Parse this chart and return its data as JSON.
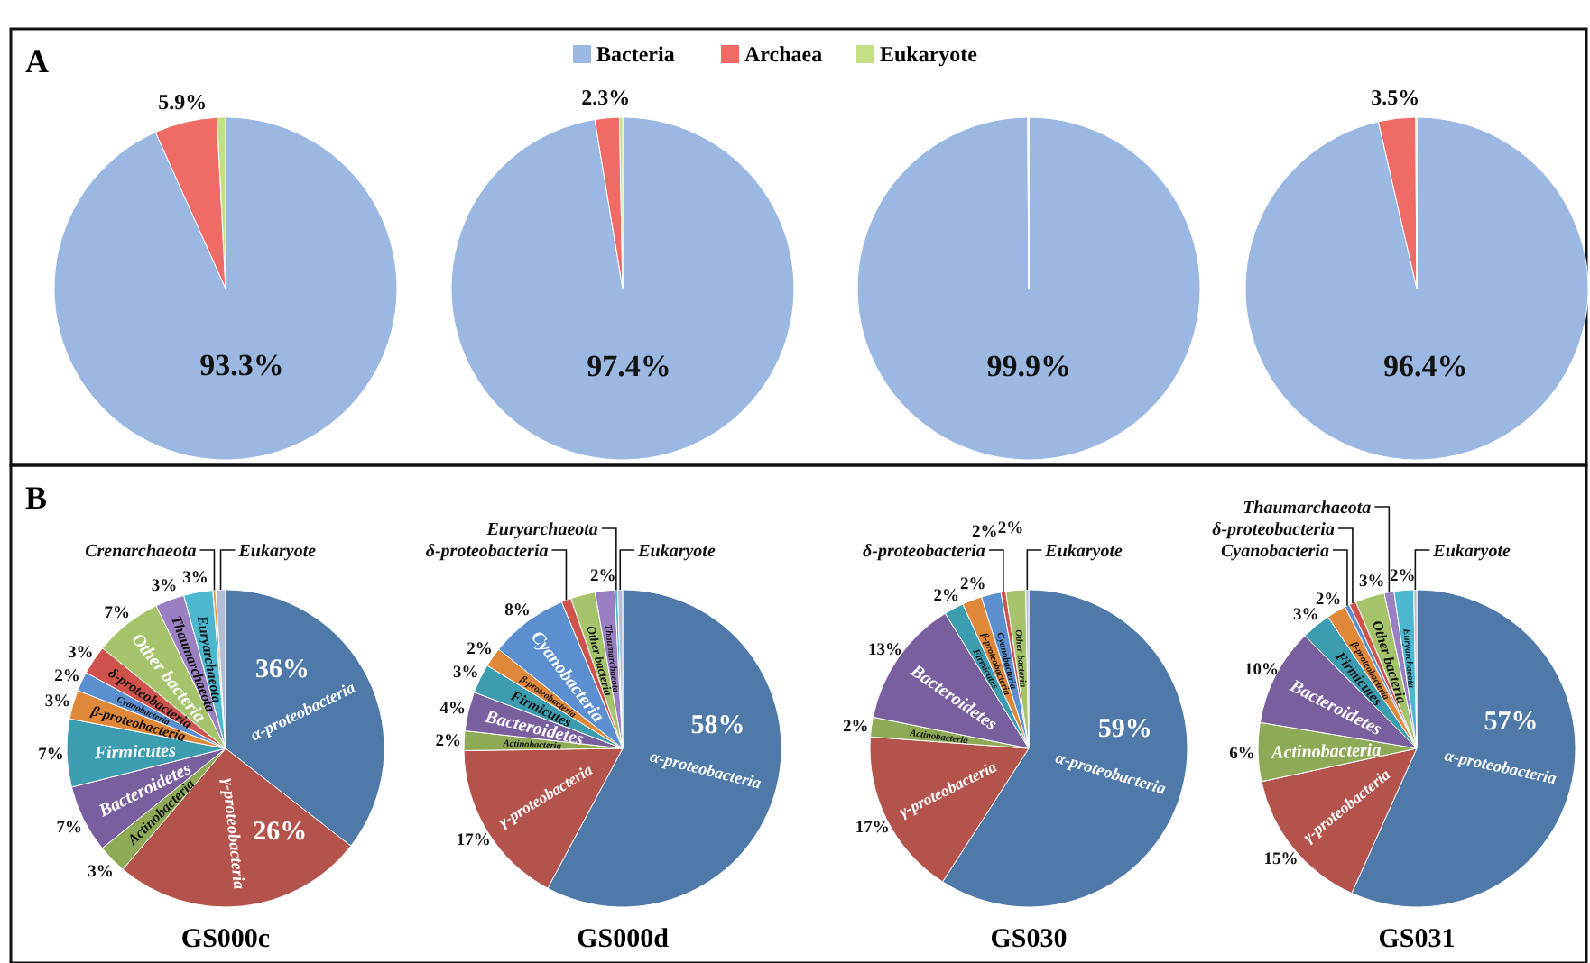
{
  "chart_data": [
    {
      "type": "pie",
      "annotations": [
        "A"
      ],
      "legend": "top",
      "categories": [
        "Bacteria",
        "Archaea",
        "Eukaryote"
      ],
      "values": [
        93.3,
        5.9,
        0.8
      ],
      "colors": [
        "#9bb8e2",
        "#ee6b66",
        "#c4de84"
      ],
      "value_labels": [
        "93.3%",
        "5.9%",
        null
      ]
    },
    {
      "type": "pie",
      "categories": [
        null,
        null,
        null
      ],
      "values": [
        97.4,
        2.3,
        0.3
      ],
      "colors": [
        "#9bb8e2",
        "#ee6b66",
        "#c4de84"
      ],
      "value_labels": [
        "97.4%",
        "2.3%",
        null
      ]
    },
    {
      "type": "pie",
      "categories": [
        null,
        null,
        null
      ],
      "values": [
        99.9,
        0.1,
        0
      ],
      "colors": [
        "#9bb8e2",
        "#ee6b66",
        "#c4de84"
      ],
      "value_labels": [
        "99.9%",
        null,
        null
      ]
    },
    {
      "type": "pie",
      "categories": [
        null,
        null,
        null
      ],
      "values": [
        96.4,
        3.5,
        0.1
      ],
      "colors": [
        "#9bb8e2",
        "#ee6b66",
        "#c4de84"
      ],
      "value_labels": [
        "96.4%",
        "3.5%",
        null
      ]
    },
    {
      "type": "pie",
      "annotations": [
        "B"
      ],
      "title": "GS000c",
      "categories": [
        "α-proteobacteria",
        "γ-proteobacteria",
        "Actinobacteria",
        "Bacteroidetes",
        "Firmicutes",
        "β-proteobacteria",
        "Cyanobacteria",
        "δ-proteobacteria",
        "Other bacteria",
        "Thaumarchaeota",
        "Euryarchaeota",
        "Crenarchaeota",
        "Eukaryote"
      ],
      "values": [
        36,
        26,
        3,
        7,
        7,
        3,
        2,
        3,
        7,
        3,
        3,
        0.3,
        1
      ],
      "colors": [
        "#4e79a9",
        "#b4524c",
        "#8eaa57",
        "#7a5f9e",
        "#3d9db0",
        "#e0883a",
        "#5b8fd0",
        "#cf524d",
        "#a5c36a",
        "#9a80c2",
        "#4db7cf",
        "#e8a050",
        "#b2bdd6"
      ],
      "value_labels": [
        "36%",
        "26%",
        "3%",
        "7%",
        "7%",
        "3%",
        "2%",
        "3%",
        "7%",
        "3%",
        "3%",
        null,
        null
      ]
    },
    {
      "type": "pie",
      "title": "GS000d",
      "categories": [
        "α-proteobacteria",
        "γ-proteobacteria",
        "Actinobacteria",
        "Bacteroidetes",
        "Firmicutes",
        "β-proteobacteria",
        "Cyanobacteria",
        "δ-proteobacteria",
        "Other bacteria",
        "Thaumarchaeota",
        "Euryarchaeota",
        "Eukaryote"
      ],
      "values": [
        58,
        17,
        2,
        4,
        3,
        2,
        8,
        1,
        2.5,
        2,
        0.3,
        0.5
      ],
      "colors": [
        "#4e79a9",
        "#b4524c",
        "#8eaa57",
        "#7a5f9e",
        "#3d9db0",
        "#e0883a",
        "#5b8fd0",
        "#cf524d",
        "#a5c36a",
        "#9a80c2",
        "#4db7cf",
        "#b2bdd6"
      ],
      "value_labels": [
        "58%",
        "17%",
        "2%",
        "4%",
        "3%",
        "2%",
        "8%",
        null,
        null,
        "2%",
        null,
        null
      ]
    },
    {
      "type": "pie",
      "title": "GS030",
      "categories": [
        "α-proteobacteria",
        "γ-proteobacteria",
        "Actinobacteria",
        "Bacteroidetes",
        "Firmicutes",
        "β-proteobacteria",
        "Cyanobacteria",
        "δ-proteobacteria",
        "Other bacteria",
        "Eukaryote"
      ],
      "values": [
        59,
        17,
        2,
        13,
        2,
        2,
        2,
        0.5,
        2,
        0.3
      ],
      "colors": [
        "#4e79a9",
        "#b4524c",
        "#8eaa57",
        "#7a5f9e",
        "#3d9db0",
        "#e0883a",
        "#5b8fd0",
        "#cf524d",
        "#a5c36a",
        "#b2bdd6"
      ],
      "value_labels": [
        "59%",
        "17%",
        "2%",
        "13%",
        "2%",
        "2%",
        "2%",
        null,
        "2%",
        null
      ]
    },
    {
      "type": "pie",
      "title": "GS031",
      "categories": [
        "α-proteobacteria",
        "γ-proteobacteria",
        "Actinobacteria",
        "Bacteroidetes",
        "Firmicutes",
        "β-proteobacteria",
        "Cyanobacteria",
        "δ-proteobacteria",
        "Other bacteria",
        "Thaumarchaeota",
        "Euryarchaeota",
        "Eukaryote"
      ],
      "values": [
        57,
        15,
        6,
        10,
        3,
        2,
        0.5,
        0.7,
        3,
        1,
        2,
        0.3
      ],
      "colors": [
        "#4e79a9",
        "#b4524c",
        "#8eaa57",
        "#7a5f9e",
        "#3d9db0",
        "#e0883a",
        "#5b8fd0",
        "#cf524d",
        "#a5c36a",
        "#9a80c2",
        "#4db7cf",
        "#b2bdd6"
      ],
      "value_labels": [
        "57%",
        "15%",
        "6%",
        "10%",
        "3%",
        "2%",
        null,
        null,
        "3%",
        null,
        "2%",
        null
      ]
    }
  ]
}
